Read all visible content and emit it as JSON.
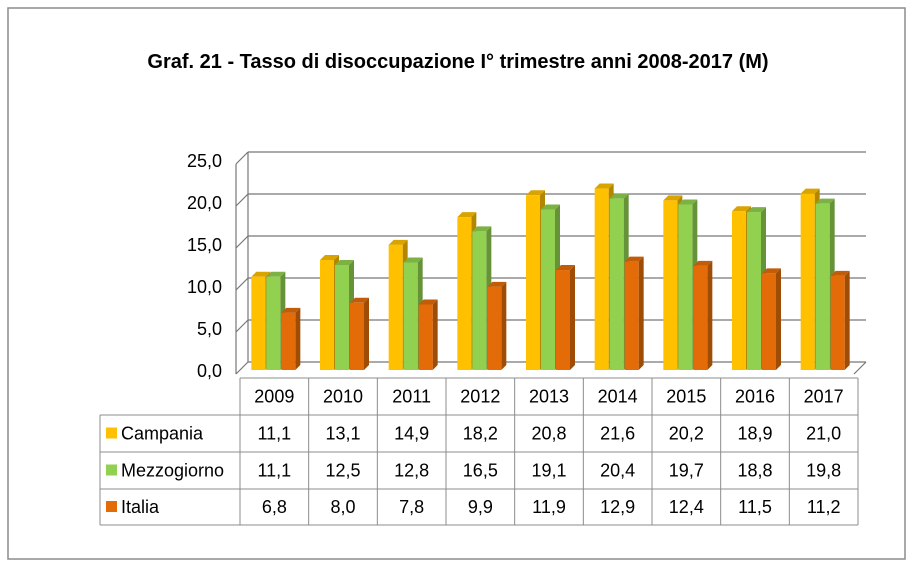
{
  "chart_data": {
    "type": "bar3d",
    "title": "Graf. 21 - Tasso di disoccupazione I° trimestre anni 2008-2017 (M)",
    "categories": [
      "2009",
      "2010",
      "2011",
      "2012",
      "2013",
      "2014",
      "2015",
      "2016",
      "2017"
    ],
    "series": [
      {
        "name": "Campania",
        "color": "#ffc000",
        "values": [
          11.1,
          13.1,
          14.9,
          18.2,
          20.8,
          21.6,
          20.2,
          18.9,
          21.0
        ],
        "value_labels": [
          "11,1",
          "13,1",
          "14,9",
          "18,2",
          "20,8",
          "21,6",
          "20,2",
          "18,9",
          "21,0"
        ]
      },
      {
        "name": "Mezzogiorno",
        "color": "#92d050",
        "values": [
          11.1,
          12.5,
          12.8,
          16.5,
          19.1,
          20.4,
          19.7,
          18.8,
          19.8
        ],
        "value_labels": [
          "11,1",
          "12,5",
          "12,8",
          "16,5",
          "19,1",
          "20,4",
          "19,7",
          "18,8",
          "19,8"
        ]
      },
      {
        "name": "Italia",
        "color": "#e36c09",
        "values": [
          6.8,
          8.0,
          7.8,
          9.9,
          11.9,
          12.9,
          12.4,
          11.5,
          11.2
        ],
        "value_labels": [
          "6,8",
          "8,0",
          "7,8",
          "9,9",
          "11,9",
          "12,9",
          "12,4",
          "11,5",
          "11,2"
        ]
      }
    ],
    "ylim": [
      0,
      25
    ],
    "yticks": [
      {
        "value": 0,
        "label": "0,0"
      },
      {
        "value": 5,
        "label": "5,0"
      },
      {
        "value": 10,
        "label": "10,0"
      },
      {
        "value": 15,
        "label": "15,0"
      },
      {
        "value": 20,
        "label": "20,0"
      },
      {
        "value": 25,
        "label": "25,0"
      }
    ],
    "grid": true
  }
}
